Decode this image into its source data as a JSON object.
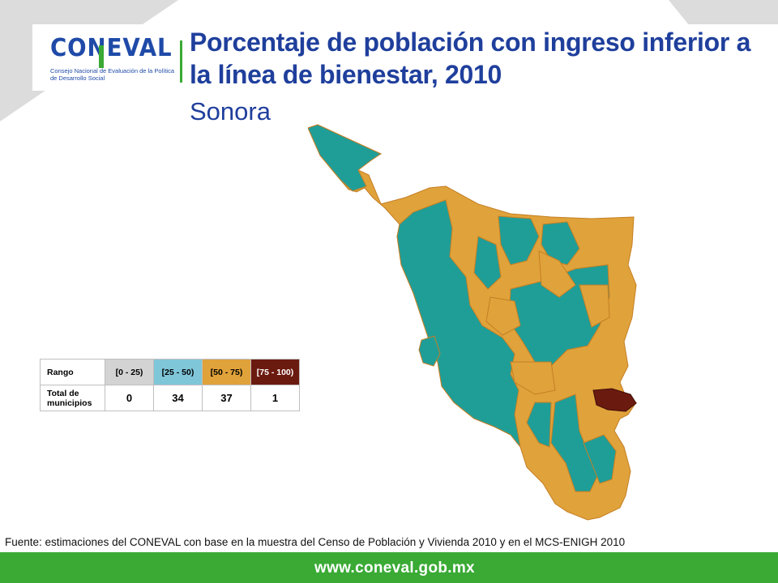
{
  "logo": {
    "wordmark": "CONEVAL",
    "subtitle": "Consejo Nacional de Evaluación de la Política de Desarrollo Social"
  },
  "title": "Porcentaje de población con ingreso inferior a la línea de bienestar, 2010",
  "subtitle": "Sonora",
  "legend": {
    "row_label_range": "Rango",
    "row_label_total": "Total de municipios",
    "ranges": [
      {
        "label": "[0 - 25)",
        "count": "0",
        "color": "#d3d3d3"
      },
      {
        "label": "[25 - 50)",
        "count": "34",
        "color": "#7fc6d9"
      },
      {
        "label": "[50 - 75)",
        "count": "37",
        "color": "#e0a23a"
      },
      {
        "label": "[75 - 100)",
        "count": "1",
        "color": "#6b1a10"
      }
    ]
  },
  "map_colors": {
    "teal": "#1f9e98",
    "orange": "#e0a23a",
    "maroon": "#6b1a10",
    "border": "#c47f25"
  },
  "source": "Fuente: estimaciones del CONEVAL con base en la muestra del Censo de Población y Vivienda 2010 y en el MCS-ENIGH 2010",
  "footer": {
    "url": "www.coneval.gob.mx",
    "color": "#3aaa35"
  }
}
